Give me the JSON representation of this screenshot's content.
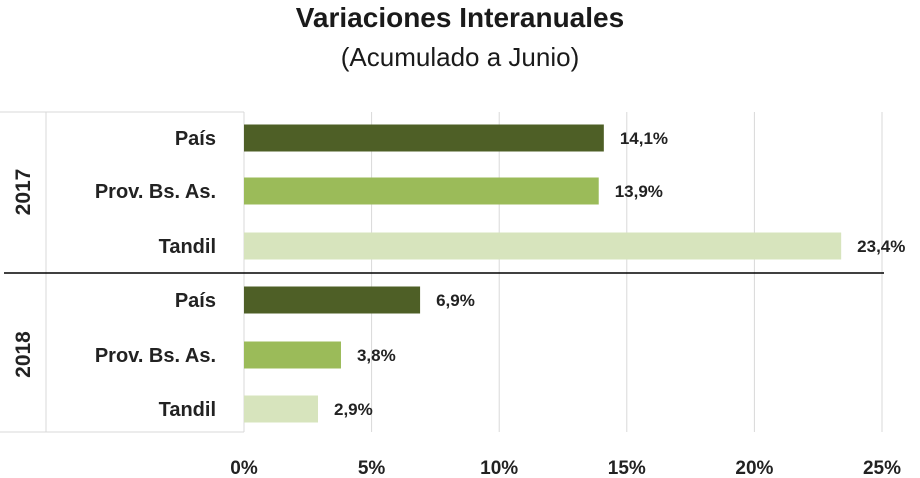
{
  "chart_data": {
    "type": "bar",
    "orientation": "horizontal",
    "title": "Variaciones Interanuales",
    "subtitle": "(Acumulado a Junio)",
    "xlim": [
      0,
      25
    ],
    "xticks": [
      "0%",
      "5%",
      "10%",
      "15%",
      "20%",
      "25%"
    ],
    "xtick_values": [
      0,
      5,
      10,
      15,
      20,
      25
    ],
    "grid": true,
    "legend": "none",
    "groups": [
      {
        "name": "2017",
        "bars": [
          {
            "category": "País",
            "value": 14.1,
            "label": "14,1%",
            "color": "#4e5f26"
          },
          {
            "category": "Prov. Bs. As.",
            "value": 13.9,
            "label": "13,9%",
            "color": "#9bbb59"
          },
          {
            "category": "Tandil",
            "value": 23.4,
            "label": "23,4%",
            "color": "#d7e4bd"
          }
        ]
      },
      {
        "name": "2018",
        "bars": [
          {
            "category": "País",
            "value": 6.9,
            "label": "6,9%",
            "color": "#4e5f26"
          },
          {
            "category": "Prov. Bs. As.",
            "value": 3.8,
            "label": "3,8%",
            "color": "#9bbb59"
          },
          {
            "category": "Tandil",
            "value": 2.9,
            "label": "2,9%",
            "color": "#d7e4bd"
          }
        ]
      }
    ]
  }
}
